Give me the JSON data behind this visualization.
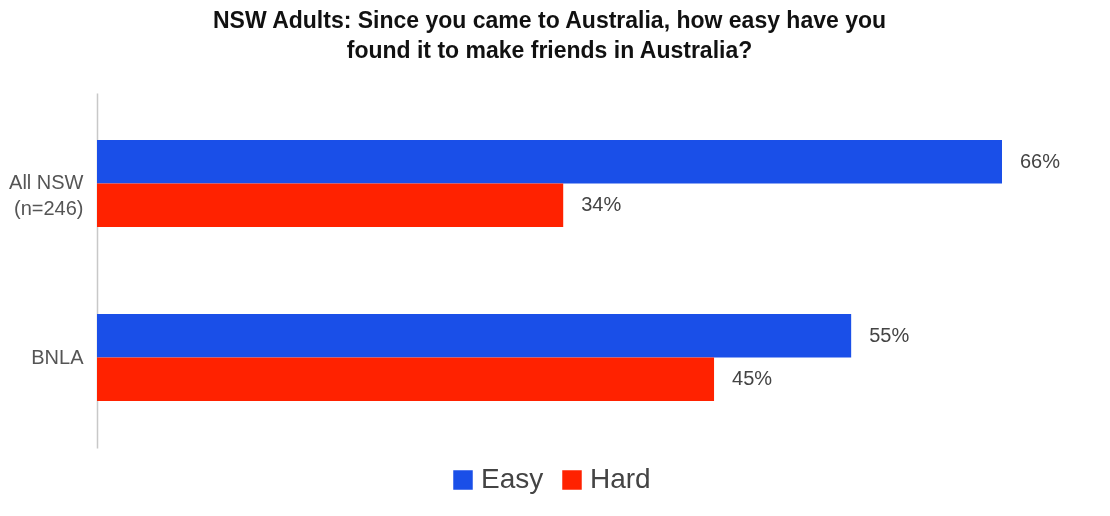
{
  "chart_data": {
    "type": "bar",
    "orientation": "horizontal",
    "title": "NSW Adults: Since you came to Australia, how easy have you\nfound it to make friends in Australia?",
    "categories": [
      "All NSW\n(n=246)",
      "BNLA"
    ],
    "series": [
      {
        "name": "Easy",
        "color": "#1a4fe8",
        "values": [
          66,
          55
        ],
        "value_labels": [
          "66%",
          "55%"
        ]
      },
      {
        "name": "Hard",
        "color": "#ff2200",
        "values": [
          34,
          45
        ],
        "value_labels": [
          "34%",
          "45%"
        ]
      }
    ],
    "tick_labels": "y",
    "legend": "bottom"
  }
}
